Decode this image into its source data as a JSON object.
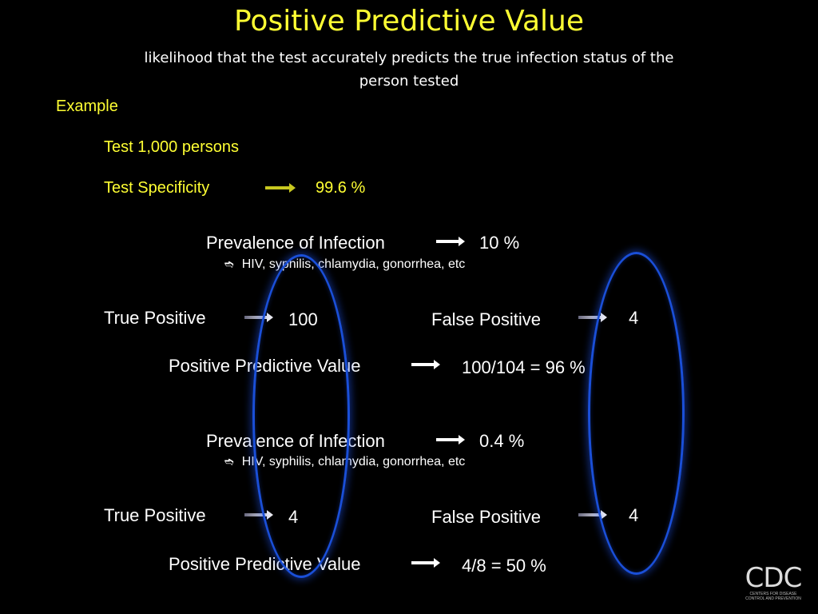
{
  "slide": {
    "title": "Positive Predictive Value",
    "subtitle_line1": "likelihood that the test accurately predicts the true infection status of the",
    "subtitle_line2": "person tested"
  },
  "example": {
    "heading": "Example",
    "tested_text": "Test 1,000 persons",
    "specificity_label": "Test Specificity",
    "specificity_value": "99.6 %"
  },
  "scenarios": [
    {
      "prevalence_label": "Prevalence of Infection",
      "prevalence_value": "10 %",
      "bullet_glyph": "➬",
      "bullet_text": "HIV, syphilis, chlamydia, gonorrhea, etc",
      "true_positive_label": "True Positive",
      "true_positive_value": "100",
      "false_positive_label": "False Positive",
      "false_positive_value": "4",
      "ppv_label": "Positive Predictive Value",
      "ppv_value": "100/104 = 96 %"
    },
    {
      "prevalence_label": "Prevalence of Infection",
      "prevalence_value": "0.4 %",
      "bullet_glyph": "➬",
      "bullet_text": "HIV, syphilis, chlamydia, gonorrhea, etc",
      "true_positive_label": "True Positive",
      "true_positive_value": "4",
      "false_positive_label": "False Positive",
      "false_positive_value": "4",
      "ppv_label": "Positive Predictive Value",
      "ppv_value": "4/8 = 50 %"
    }
  ],
  "logo": {
    "mark": "CDC",
    "tagline": "CENTERS FOR DISEASE CONTROL AND PREVENTION"
  },
  "colors": {
    "background": "#000000",
    "title": "#ffff33",
    "highlight_oval": "#1a4fd8"
  }
}
